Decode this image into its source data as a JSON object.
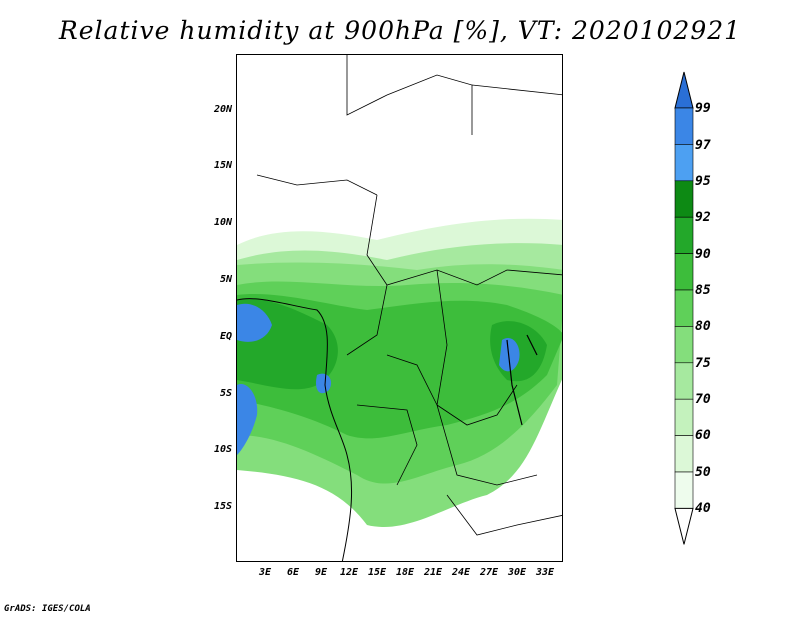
{
  "title": "Relative humidity at 900hPa [%], VT: 2020102921",
  "credit": "GrADS: IGES/COLA",
  "axes": {
    "y_ticks": [
      "20N",
      "15N",
      "10N",
      "5N",
      "EQ",
      "5S",
      "10S",
      "15S"
    ],
    "x_ticks": [
      "3E",
      "6E",
      "9E",
      "12E",
      "15E",
      "18E",
      "21E",
      "24E",
      "27E",
      "30E",
      "33E"
    ]
  },
  "colorbar": {
    "labels": [
      "99",
      "97",
      "95",
      "92",
      "90",
      "85",
      "80",
      "75",
      "70",
      "60",
      "50",
      "40"
    ],
    "colors": [
      "#2a6fd6",
      "#3b86e6",
      "#4da0f2",
      "#0d8a14",
      "#23a82a",
      "#3dbd3b",
      "#5fd059",
      "#84de7c",
      "#a6e99f",
      "#c4f2bd",
      "#dcf8d7",
      "#eefced"
    ]
  },
  "chart_data": {
    "type": "heatmap",
    "title": "Relative humidity at 900hPa [%], VT: 2020102921",
    "xlabel": "",
    "ylabel": "",
    "xlim": [
      0,
      35
    ],
    "ylim": [
      -19,
      25
    ],
    "x_ticks": [
      "3E",
      "6E",
      "9E",
      "12E",
      "15E",
      "18E",
      "21E",
      "24E",
      "27E",
      "30E",
      "33E"
    ],
    "y_ticks": [
      "20N",
      "15N",
      "10N",
      "5N",
      "EQ",
      "5S",
      "10S",
      "15S"
    ],
    "levels": [
      40,
      50,
      60,
      70,
      75,
      80,
      85,
      90,
      92,
      95,
      97,
      99
    ]
  }
}
